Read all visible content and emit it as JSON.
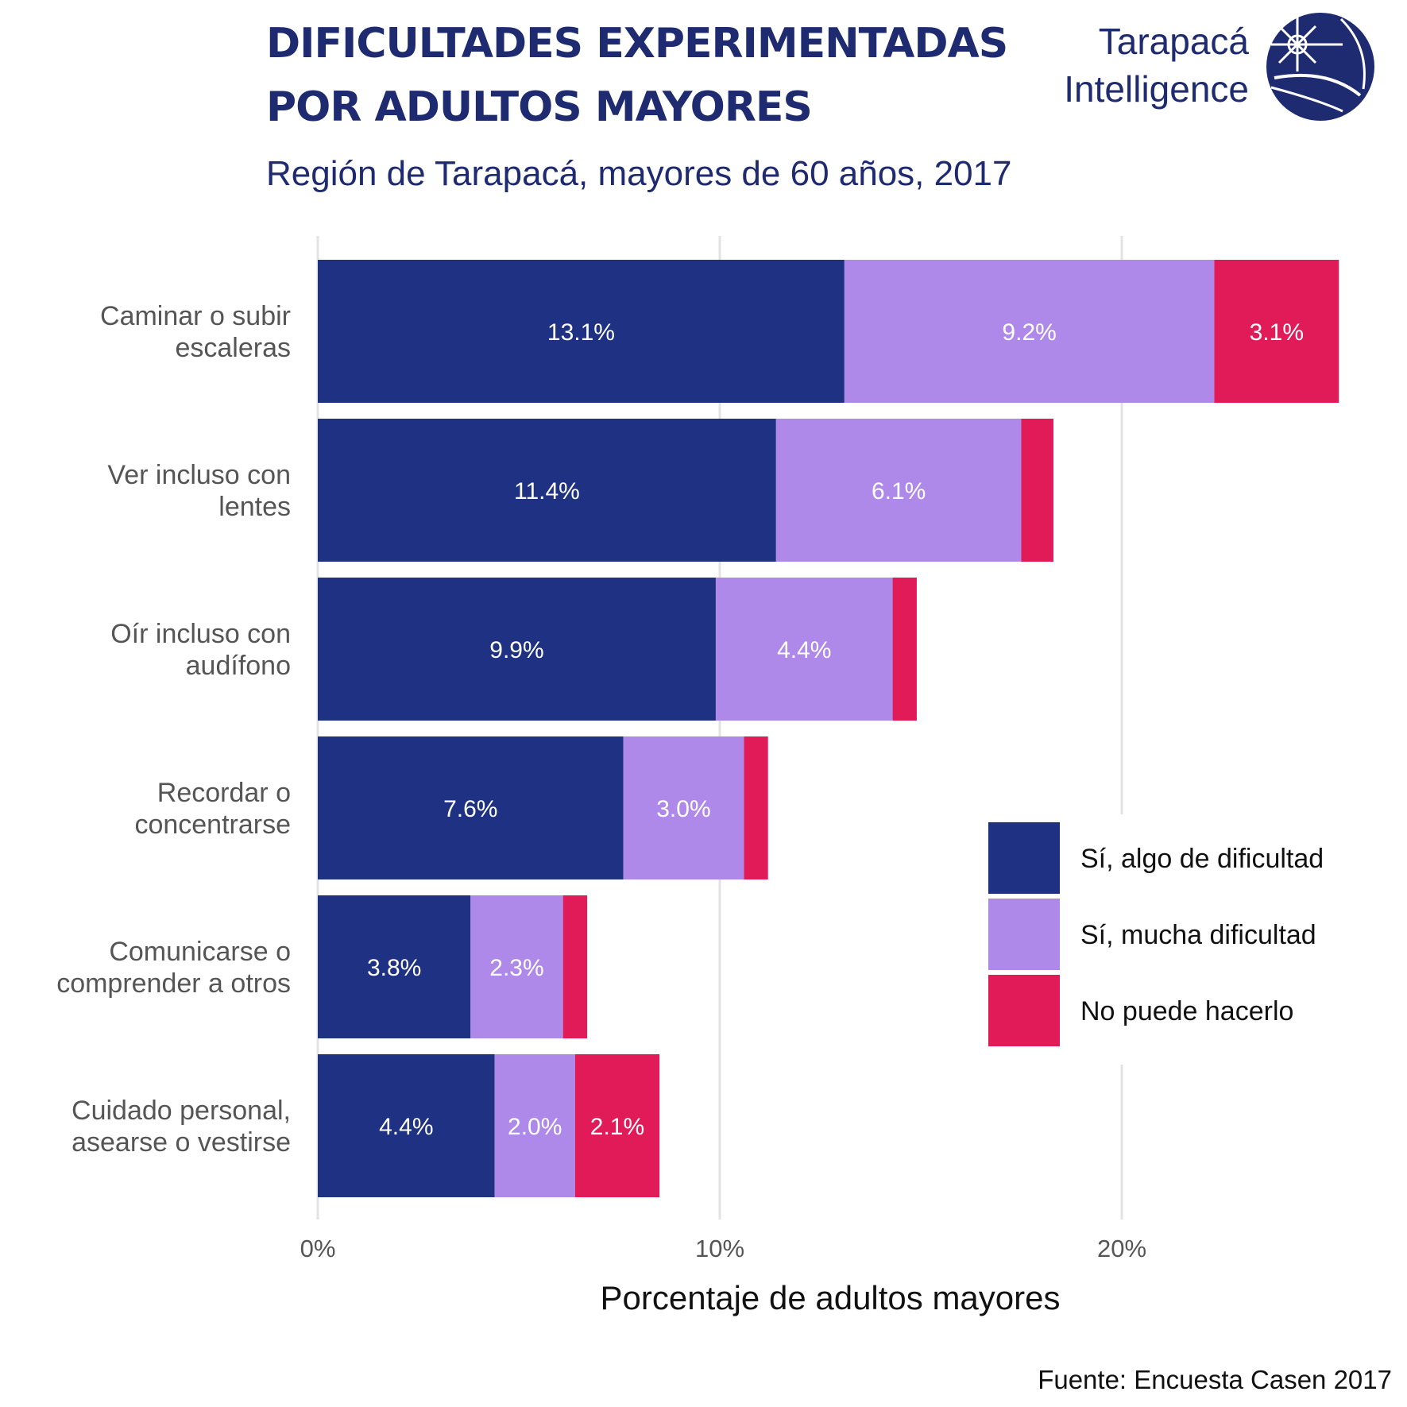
{
  "chart_data": {
    "type": "bar",
    "orientation": "horizontal",
    "stacked": true,
    "title": [
      "DIFICULTADES EXPERIMENTADAS",
      "POR ADULTOS MAYORES"
    ],
    "subtitle": "Región de Tarapacá, mayores de 60 años, 2017",
    "xlabel": "Porcentaje de adultos mayores",
    "xlim": [
      0,
      26
    ],
    "xticks": [
      0,
      10,
      20
    ],
    "xtick_labels": [
      "0%",
      "10%",
      "20%"
    ],
    "grid": "vertical",
    "legend_position": "right",
    "categories": [
      [
        "Caminar o subir",
        "escaleras"
      ],
      [
        "Ver incluso con",
        "lentes"
      ],
      [
        "Oír incluso con",
        "audífono"
      ],
      [
        "Recordar o",
        "concentrarse"
      ],
      [
        "Comunicarse o",
        "comprender a otros"
      ],
      [
        "Cuidado personal,",
        "asearse o vestirse"
      ]
    ],
    "series": [
      {
        "name": "Sí, algo de dificultad",
        "color": "#1e3182",
        "values": [
          13.1,
          11.4,
          9.9,
          7.6,
          3.8,
          4.4
        ],
        "labels": [
          "13.1%",
          "11.4%",
          "9.9%",
          "7.6%",
          "3.8%",
          "4.4%"
        ]
      },
      {
        "name": "Sí, mucha dificultad",
        "color": "#ae89ea",
        "values": [
          9.2,
          6.1,
          4.4,
          3.0,
          2.3,
          2.0
        ],
        "labels": [
          "9.2%",
          "6.1%",
          "4.4%",
          "3.0%",
          "2.3%",
          "2.0%"
        ]
      },
      {
        "name": "No puede hacerlo",
        "color": "#e11b58",
        "values": [
          3.1,
          0.8,
          0.6,
          0.6,
          0.6,
          2.1
        ],
        "labels": [
          "3.1%",
          "",
          "",
          "",
          "",
          "2.1%"
        ]
      }
    ]
  },
  "brand": {
    "line1": "Tarapacá",
    "line2": "Intelligence",
    "logo_icon": "globe-icon"
  },
  "source": "Fuente: Encuesta Casen 2017"
}
